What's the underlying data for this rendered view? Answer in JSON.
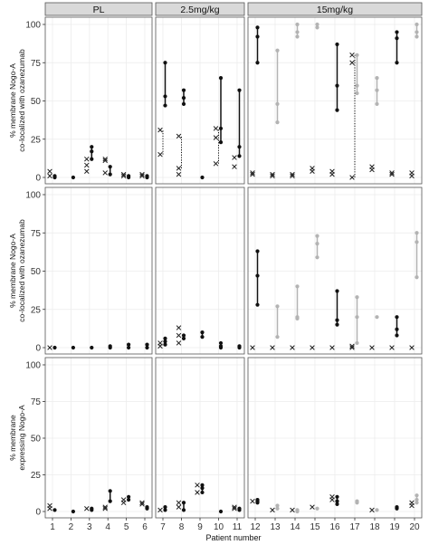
{
  "chart_data": {
    "type": "scatter",
    "facet_columns": [
      "PL",
      "2.5mg/kg",
      "15mg/kg"
    ],
    "patients_per_group": [
      [
        1,
        2,
        3,
        4,
        5,
        6
      ],
      [
        7,
        8,
        9,
        10,
        11
      ],
      [
        12,
        13,
        14,
        15,
        16,
        17,
        18,
        19,
        20
      ]
    ],
    "xlabel": "Patient number",
    "ylim": [
      0,
      100
    ],
    "yticks": [
      0,
      25,
      50,
      75,
      100
    ],
    "grid": true,
    "colors": {
      "dark": "#111111",
      "light": "#b3b3b3",
      "x_marker": "#222222",
      "panel_border": "#555555",
      "strip_fill": "#d9d9d9",
      "grid": "#ececec"
    },
    "rows": [
      {
        "ylabel": [
          "% membrane Nogo-A",
          "co-localized with ozanezumab"
        ],
        "series": [
          {
            "name": "",
            "marker": "dot",
            "data": [
              {
                "x": 1,
                "values": [
                  0,
                  1
                ],
                "shade": "dark"
              },
              {
                "x": 2,
                "values": [
                  0
                ],
                "shade": "dark"
              },
              {
                "x": 3,
                "values": [
                  12,
                  17,
                  20
                ],
                "shade": "dark"
              },
              {
                "x": 4,
                "values": [
                  2,
                  7
                ],
                "shade": "dark"
              },
              {
                "x": 5,
                "values": [
                  0,
                  1
                ],
                "shade": "dark"
              },
              {
                "x": 6,
                "values": [
                  0,
                  1
                ],
                "shade": "dark"
              },
              {
                "x": 7,
                "values": [
                  47,
                  53,
                  75
                ],
                "shade": "dark"
              },
              {
                "x": 8,
                "values": [
                  48,
                  52,
                  57
                ],
                "shade": "dark"
              },
              {
                "x": 9,
                "values": [
                  0
                ],
                "shade": "dark"
              },
              {
                "x": 10,
                "values": [
                  23,
                  32,
                  65
                ],
                "shade": "dark"
              },
              {
                "x": 11,
                "values": [
                  14,
                  20,
                  57
                ],
                "shade": "dark"
              },
              {
                "x": 12,
                "values": [
                  75,
                  92,
                  98
                ],
                "shade": "dark"
              },
              {
                "x": 13,
                "values": [
                  36,
                  48,
                  83
                ],
                "shade": "light"
              },
              {
                "x": 14,
                "values": [
                  92,
                  95,
                  100
                ],
                "shade": "light"
              },
              {
                "x": 15,
                "values": [
                  98,
                  100
                ],
                "shade": "light"
              },
              {
                "x": 16,
                "values": [
                  44,
                  60,
                  87
                ],
                "shade": "dark"
              },
              {
                "x": 17,
                "values": [
                  55,
                  60,
                  80
                ],
                "shade": "light"
              },
              {
                "x": 18,
                "values": [
                  48,
                  57,
                  65
                ],
                "shade": "light"
              },
              {
                "x": 19,
                "values": [
                  75,
                  91,
                  95
                ],
                "shade": "dark"
              },
              {
                "x": 20,
                "values": [
                  92,
                  95,
                  100
                ],
                "shade": "light"
              }
            ]
          },
          {
            "name": "",
            "marker": "x",
            "data": [
              {
                "x": 1,
                "values": [
                  1,
                  4
                ]
              },
              {
                "x": 3,
                "values": [
                  4,
                  8,
                  12
                ]
              },
              {
                "x": 4,
                "values": [
                  3,
                  11,
                  12
                ]
              },
              {
                "x": 5,
                "values": [
                  1,
                  2
                ]
              },
              {
                "x": 6,
                "values": [
                  1,
                  2
                ]
              },
              {
                "x": 7,
                "values": [
                  15,
                  31
                ]
              },
              {
                "x": 8,
                "values": [
                  2,
                  6,
                  27
                ]
              },
              {
                "x": 10,
                "values": [
                  9,
                  26,
                  32
                ]
              },
              {
                "x": 11,
                "values": [
                  7,
                  13
                ]
              },
              {
                "x": 12,
                "values": [
                  2,
                  3
                ]
              },
              {
                "x": 13,
                "values": [
                  1,
                  2
                ]
              },
              {
                "x": 14,
                "values": [
                  1,
                  2
                ]
              },
              {
                "x": 15,
                "values": [
                  4,
                  6
                ]
              },
              {
                "x": 16,
                "values": [
                  2,
                  4
                ]
              },
              {
                "x": 17,
                "values": [
                  0,
                  75,
                  80
                ]
              },
              {
                "x": 18,
                "values": [
                  5,
                  7
                ]
              },
              {
                "x": 19,
                "values": [
                  2,
                  3
                ]
              },
              {
                "x": 20,
                "values": [
                  1,
                  3
                ]
              }
            ]
          }
        ],
        "dotted_links": [
          {
            "x": 7,
            "from": 15,
            "to": 31
          },
          {
            "x": 8,
            "from": 6,
            "to": 27
          },
          {
            "x": 10,
            "from": 9,
            "to": 32
          },
          {
            "x": 17,
            "from": 0,
            "to": 80
          }
        ]
      },
      {
        "ylabel": [
          "% membrane Nogo-A",
          "co-localized with ozanezumab"
        ],
        "series": [
          {
            "name": "",
            "marker": "dot",
            "data": [
              {
                "x": 1,
                "values": [
                  0
                ],
                "shade": "dark"
              },
              {
                "x": 2,
                "values": [
                  0
                ],
                "shade": "dark"
              },
              {
                "x": 3,
                "values": [
                  0
                ],
                "shade": "dark"
              },
              {
                "x": 4,
                "values": [
                  0,
                  1
                ],
                "shade": "dark"
              },
              {
                "x": 5,
                "values": [
                  0,
                  2
                ],
                "shade": "dark"
              },
              {
                "x": 6,
                "values": [
                  0,
                  2
                ],
                "shade": "dark"
              },
              {
                "x": 7,
                "values": [
                  2,
                  4,
                  6
                ],
                "shade": "dark"
              },
              {
                "x": 8,
                "values": [
                  6,
                  8
                ],
                "shade": "dark"
              },
              {
                "x": 9,
                "values": [
                  7,
                  10
                ],
                "shade": "dark"
              },
              {
                "x": 10,
                "values": [
                  0,
                  1,
                  3
                ],
                "shade": "dark"
              },
              {
                "x": 11,
                "values": [
                  0,
                  1
                ],
                "shade": "dark"
              },
              {
                "x": 12,
                "values": [
                  28,
                  47,
                  63
                ],
                "shade": "dark"
              },
              {
                "x": 13,
                "values": [
                  7,
                  27
                ],
                "shade": "light"
              },
              {
                "x": 14,
                "values": [
                  19,
                  20,
                  40
                ],
                "shade": "light"
              },
              {
                "x": 15,
                "values": [
                  59,
                  68,
                  73
                ],
                "shade": "light"
              },
              {
                "x": 16,
                "values": [
                  15,
                  18,
                  37
                ],
                "shade": "dark"
              },
              {
                "x": 17,
                "values": [
                  3,
                  20,
                  33
                ],
                "shade": "light"
              },
              {
                "x": 18,
                "values": [
                  20
                ],
                "shade": "light"
              },
              {
                "x": 19,
                "values": [
                  8,
                  12,
                  20
                ],
                "shade": "dark"
              },
              {
                "x": 20,
                "values": [
                  46,
                  69,
                  75
                ],
                "shade": "light"
              }
            ]
          },
          {
            "name": "",
            "marker": "x",
            "data": [
              {
                "x": 1,
                "values": [
                  0
                ]
              },
              {
                "x": 7,
                "values": [
                  1,
                  3
                ]
              },
              {
                "x": 8,
                "values": [
                  3,
                  8,
                  13
                ]
              },
              {
                "x": 12,
                "values": [
                  0
                ]
              },
              {
                "x": 13,
                "values": [
                  0
                ]
              },
              {
                "x": 14,
                "values": [
                  0
                ]
              },
              {
                "x": 15,
                "values": [
                  0
                ]
              },
              {
                "x": 16,
                "values": [
                  0
                ]
              },
              {
                "x": 17,
                "values": [
                  0,
                  1
                ]
              },
              {
                "x": 18,
                "values": [
                  0
                ]
              },
              {
                "x": 19,
                "values": [
                  0
                ]
              },
              {
                "x": 20,
                "values": [
                  0
                ]
              }
            ]
          }
        ],
        "dotted_links": []
      },
      {
        "ylabel": [
          "% membrane",
          "expressing Nogo-A"
        ],
        "series": [
          {
            "name": "",
            "marker": "dot",
            "data": [
              {
                "x": 1,
                "values": [
                  1
                ],
                "shade": "dark"
              },
              {
                "x": 2,
                "values": [
                  0
                ],
                "shade": "dark"
              },
              {
                "x": 3,
                "values": [
                  1,
                  2
                ],
                "shade": "dark"
              },
              {
                "x": 4,
                "values": [
                  7,
                  14
                ],
                "shade": "dark"
              },
              {
                "x": 5,
                "values": [
                  8,
                  10
                ],
                "shade": "dark"
              },
              {
                "x": 6,
                "values": [
                  2,
                  3
                ],
                "shade": "dark"
              },
              {
                "x": 7,
                "values": [
                  1,
                  3
                ],
                "shade": "dark"
              },
              {
                "x": 8,
                "values": [
                  1,
                  6
                ],
                "shade": "dark"
              },
              {
                "x": 9,
                "values": [
                  13,
                  16,
                  18
                ],
                "shade": "dark"
              },
              {
                "x": 10,
                "values": [
                  0
                ],
                "shade": "dark"
              },
              {
                "x": 11,
                "values": [
                  1,
                  2
                ],
                "shade": "dark"
              },
              {
                "x": 12,
                "values": [
                  6,
                  7,
                  8
                ],
                "shade": "dark"
              },
              {
                "x": 13,
                "values": [
                  2,
                  4
                ],
                "shade": "light"
              },
              {
                "x": 14,
                "values": [
                  0,
                  1
                ],
                "shade": "light"
              },
              {
                "x": 15,
                "values": [
                  2
                ],
                "shade": "light"
              },
              {
                "x": 16,
                "values": [
                  5,
                  7,
                  10
                ],
                "shade": "dark"
              },
              {
                "x": 17,
                "values": [
                  6,
                  7
                ],
                "shade": "light"
              },
              {
                "x": 18,
                "values": [
                  1
                ],
                "shade": "light"
              },
              {
                "x": 19,
                "values": [
                  2,
                  3
                ],
                "shade": "dark"
              },
              {
                "x": 20,
                "values": [
                  6,
                  8,
                  11
                ],
                "shade": "light"
              }
            ]
          },
          {
            "name": "",
            "marker": "x",
            "data": [
              {
                "x": 1,
                "values": [
                  2,
                  4
                ]
              },
              {
                "x": 3,
                "values": [
                  2
                ]
              },
              {
                "x": 4,
                "values": [
                  2,
                  3
                ]
              },
              {
                "x": 5,
                "values": [
                  6,
                  8
                ]
              },
              {
                "x": 6,
                "values": [
                  5,
                  6
                ]
              },
              {
                "x": 7,
                "values": [
                  1
                ]
              },
              {
                "x": 8,
                "values": [
                  3,
                  6
                ]
              },
              {
                "x": 9,
                "values": [
                  13,
                  18
                ]
              },
              {
                "x": 11,
                "values": [
                  2,
                  3
                ]
              },
              {
                "x": 12,
                "values": [
                  7
                ]
              },
              {
                "x": 13,
                "values": [
                  1
                ]
              },
              {
                "x": 14,
                "values": [
                  1
                ]
              },
              {
                "x": 15,
                "values": [
                  3
                ]
              },
              {
                "x": 16,
                "values": [
                  8,
                  10
                ]
              },
              {
                "x": 18,
                "values": [
                  1
                ]
              },
              {
                "x": 20,
                "values": [
                  4,
                  6
                ]
              }
            ]
          }
        ],
        "dotted_links": []
      }
    ]
  }
}
